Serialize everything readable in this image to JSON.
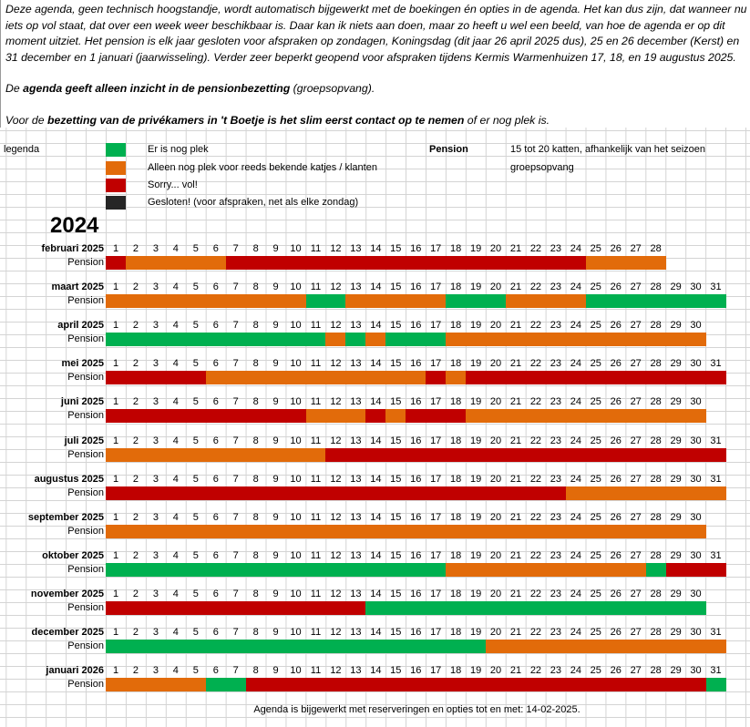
{
  "intro": {
    "paragraph": "Deze agenda, geen technisch hoogstandje, wordt automatisch bijgewerkt met de boekingen én opties in de agenda. Het kan dus zijn, dat wanneer nu iets op vol staat, dat over een week weer beschikbaar is. Daar kan ik niets aan doen, maar zo heeft u wel een beeld, van hoe de agenda er op dit moment uitziet. Het pension is elk jaar gesloten voor afspraken op zondagen, Koningsdag (dit jaar 26 april 2025 dus), 25 en 26 december (Kerst) en 31 december en 1 januari (jaarwisseling). Verder zeer beperkt geopend voor afspraken tijdens Kermis Warmenhuizen 17, 18, en 19 augustus 2025.",
    "line2_pre": "De ",
    "line2_bold": "agenda geeft alleen inzicht in de pensionbezetting",
    "line2_post": " (groepsopvang).",
    "line3_pre": "Voor de ",
    "line3_bold": "bezetting van de privékamers in 't Boetje is het slim eerst contact op te nemen",
    "line3_post": " of er nog plek is."
  },
  "legend": {
    "title": "legenda",
    "items": [
      {
        "code": "G",
        "color": "#00b050",
        "label": "Er is nog plek"
      },
      {
        "code": "O",
        "color": "#e26b0a",
        "label": "Alleen nog plek voor reeds bekende katjes / klanten"
      },
      {
        "code": "R",
        "color": "#c00000",
        "label": "Sorry... vol!"
      },
      {
        "code": "B",
        "color": "#262626",
        "label": "Gesloten! (voor afspraken, net als elke zondag)"
      }
    ],
    "pension_title": "Pension",
    "pension_desc": "15 tot 20 katten, afhankelijk van het seizoen",
    "pension_type": "groepsopvang"
  },
  "year": "2024",
  "row_label": "Pension",
  "months": [
    {
      "name": "februari 2025",
      "days": 28,
      "runs": [
        [
          "R",
          1
        ],
        [
          "O",
          5
        ],
        [
          "R",
          18
        ],
        [
          "O",
          4
        ]
      ]
    },
    {
      "name": "maart 2025",
      "days": 31,
      "runs": [
        [
          "O",
          10
        ],
        [
          "G",
          2
        ],
        [
          "O",
          5
        ],
        [
          "G",
          3
        ],
        [
          "O",
          4
        ],
        [
          "G",
          7
        ]
      ]
    },
    {
      "name": "april 2025",
      "days": 30,
      "runs": [
        [
          "G",
          11
        ],
        [
          "O",
          1
        ],
        [
          "G",
          1
        ],
        [
          "O",
          1
        ],
        [
          "G",
          3
        ],
        [
          "O",
          13
        ]
      ]
    },
    {
      "name": "mei 2025",
      "days": 31,
      "runs": [
        [
          "R",
          5
        ],
        [
          "O",
          11
        ],
        [
          "R",
          1
        ],
        [
          "O",
          1
        ],
        [
          "R",
          13
        ]
      ]
    },
    {
      "name": "juni 2025",
      "days": 30,
      "runs": [
        [
          "R",
          10
        ],
        [
          "O",
          3
        ],
        [
          "R",
          1
        ],
        [
          "O",
          1
        ],
        [
          "R",
          3
        ],
        [
          "O",
          12
        ]
      ]
    },
    {
      "name": "juli 2025",
      "days": 31,
      "runs": [
        [
          "O",
          11
        ],
        [
          "R",
          20
        ]
      ]
    },
    {
      "name": "augustus 2025",
      "days": 31,
      "runs": [
        [
          "R",
          23
        ],
        [
          "O",
          8
        ]
      ]
    },
    {
      "name": "september 2025",
      "days": 30,
      "runs": [
        [
          "O",
          30
        ]
      ]
    },
    {
      "name": "oktober 2025",
      "days": 31,
      "runs": [
        [
          "G",
          17
        ],
        [
          "O",
          10
        ],
        [
          "G",
          1
        ],
        [
          "R",
          3
        ]
      ]
    },
    {
      "name": "november 2025",
      "days": 30,
      "runs": [
        [
          "R",
          13
        ],
        [
          "G",
          17
        ]
      ]
    },
    {
      "name": "december 2025",
      "days": 31,
      "runs": [
        [
          "G",
          19
        ],
        [
          "O",
          12
        ]
      ]
    },
    {
      "name": "januari 2026",
      "days": 31,
      "runs": [
        [
          "O",
          5
        ],
        [
          "G",
          2
        ],
        [
          "R",
          23
        ],
        [
          "G",
          1
        ]
      ]
    }
  ],
  "footer": "Agenda is bijgewerkt met reserveringen en opties tot en met: 14-02-2025."
}
